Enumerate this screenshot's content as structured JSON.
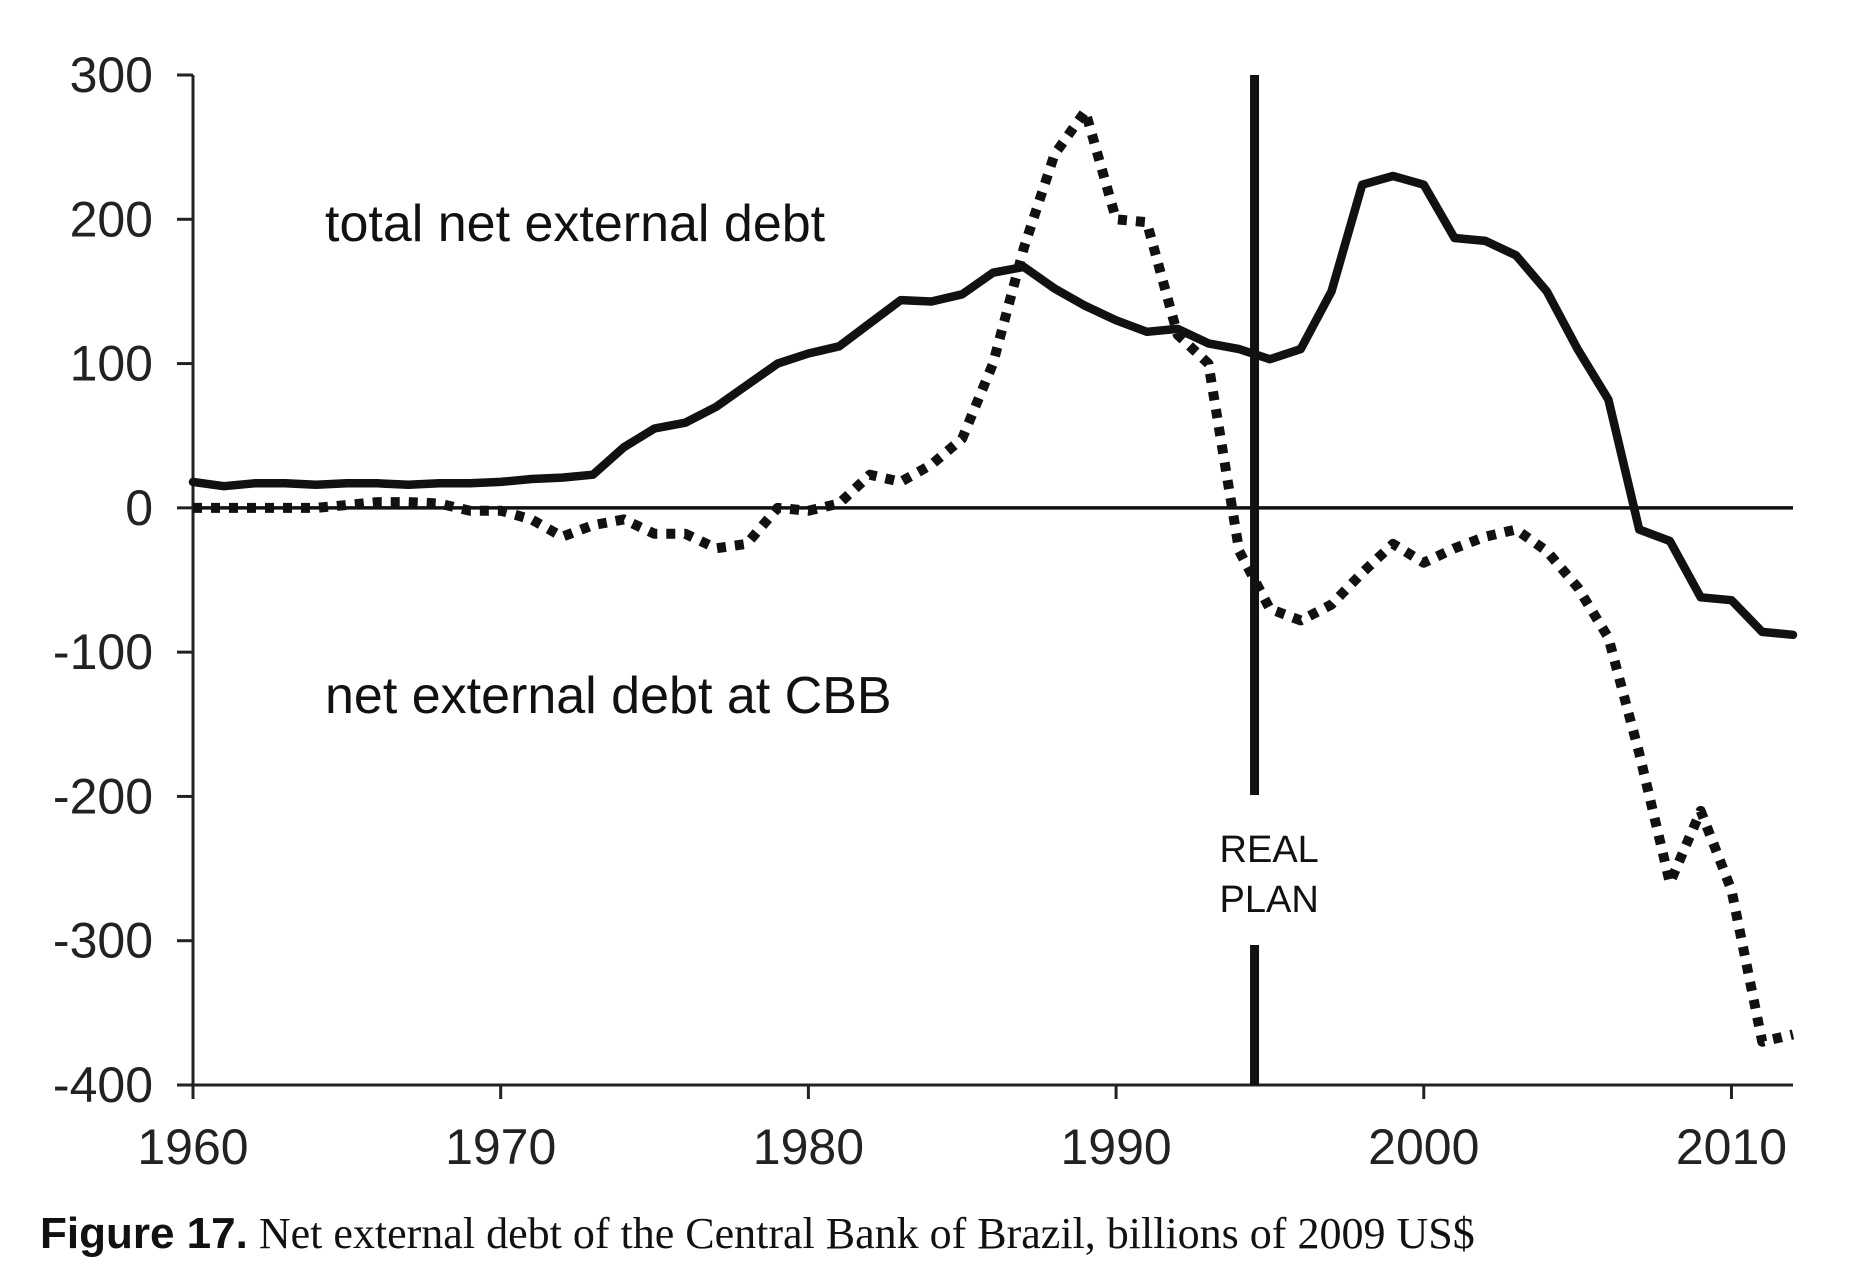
{
  "chart_data": {
    "type": "line",
    "xlabel": "",
    "ylabel": "",
    "xlim": [
      1960,
      2012
    ],
    "ylim": [
      -400,
      300
    ],
    "x_ticks": [
      {
        "value": 1960,
        "label": "1960"
      },
      {
        "value": 1970,
        "label": "1970"
      },
      {
        "value": 1980,
        "label": "1980"
      },
      {
        "value": 1990,
        "label": "1990"
      },
      {
        "value": 2000,
        "label": "2000"
      },
      {
        "value": 2010,
        "label": "2010"
      }
    ],
    "y_ticks": [
      {
        "value": 300,
        "label": "300"
      },
      {
        "value": 200,
        "label": "200"
      },
      {
        "value": 100,
        "label": "100"
      },
      {
        "value": 0,
        "label": "0"
      },
      {
        "value": -100,
        "label": "-100"
      },
      {
        "value": -200,
        "label": "-200"
      },
      {
        "value": -300,
        "label": "-300"
      },
      {
        "value": -400,
        "label": "-400"
      }
    ],
    "grid": false,
    "legend": "none",
    "x": [
      1960,
      1961,
      1962,
      1963,
      1964,
      1965,
      1966,
      1967,
      1968,
      1969,
      1970,
      1971,
      1972,
      1973,
      1974,
      1975,
      1976,
      1977,
      1978,
      1979,
      1980,
      1981,
      1982,
      1983,
      1984,
      1985,
      1986,
      1987,
      1988,
      1989,
      1990,
      1991,
      1992,
      1993,
      1994,
      1995,
      1996,
      1997,
      1998,
      1999,
      2000,
      2001,
      2002,
      2003,
      2004,
      2005,
      2006,
      2007,
      2008,
      2009,
      2010,
      2011,
      2012
    ],
    "series": [
      {
        "name": "total net external debt",
        "style": "solid",
        "values": [
          18,
          15,
          17,
          17,
          16,
          17,
          17,
          16,
          17,
          17,
          18,
          20,
          21,
          23,
          42,
          55,
          59,
          70,
          85,
          100,
          107,
          112,
          128,
          144,
          143,
          148,
          163,
          167,
          152,
          140,
          130,
          122,
          124,
          114,
          110,
          103,
          110,
          150,
          224,
          230,
          224,
          187,
          185,
          175,
          150,
          110,
          75,
          -15,
          -23,
          -62,
          -64,
          -86,
          -88
        ]
      },
      {
        "name": "net external debt at CBB",
        "style": "dotted",
        "values": [
          0,
          0,
          0,
          0,
          0,
          2,
          4,
          4,
          3,
          -2,
          -2,
          -8,
          -20,
          -12,
          -8,
          -18,
          -18,
          -28,
          -25,
          0,
          -2,
          3,
          23,
          18,
          30,
          48,
          100,
          180,
          245,
          275,
          200,
          198,
          120,
          100,
          -30,
          -70,
          -78,
          -67,
          -45,
          -25,
          -38,
          -28,
          -20,
          -15,
          -30,
          -55,
          -90,
          -170,
          -260,
          -210,
          -265,
          -370,
          -365
        ]
      }
    ],
    "annotations": [
      {
        "x": 1994.5,
        "type": "vertical-line",
        "label_lines": [
          "REAL",
          "PLAN"
        ]
      }
    ]
  },
  "caption": {
    "lead": "Figure 17.",
    "text": " Net external debt of the Central Bank of Brazil, billions of 2009 US$"
  }
}
